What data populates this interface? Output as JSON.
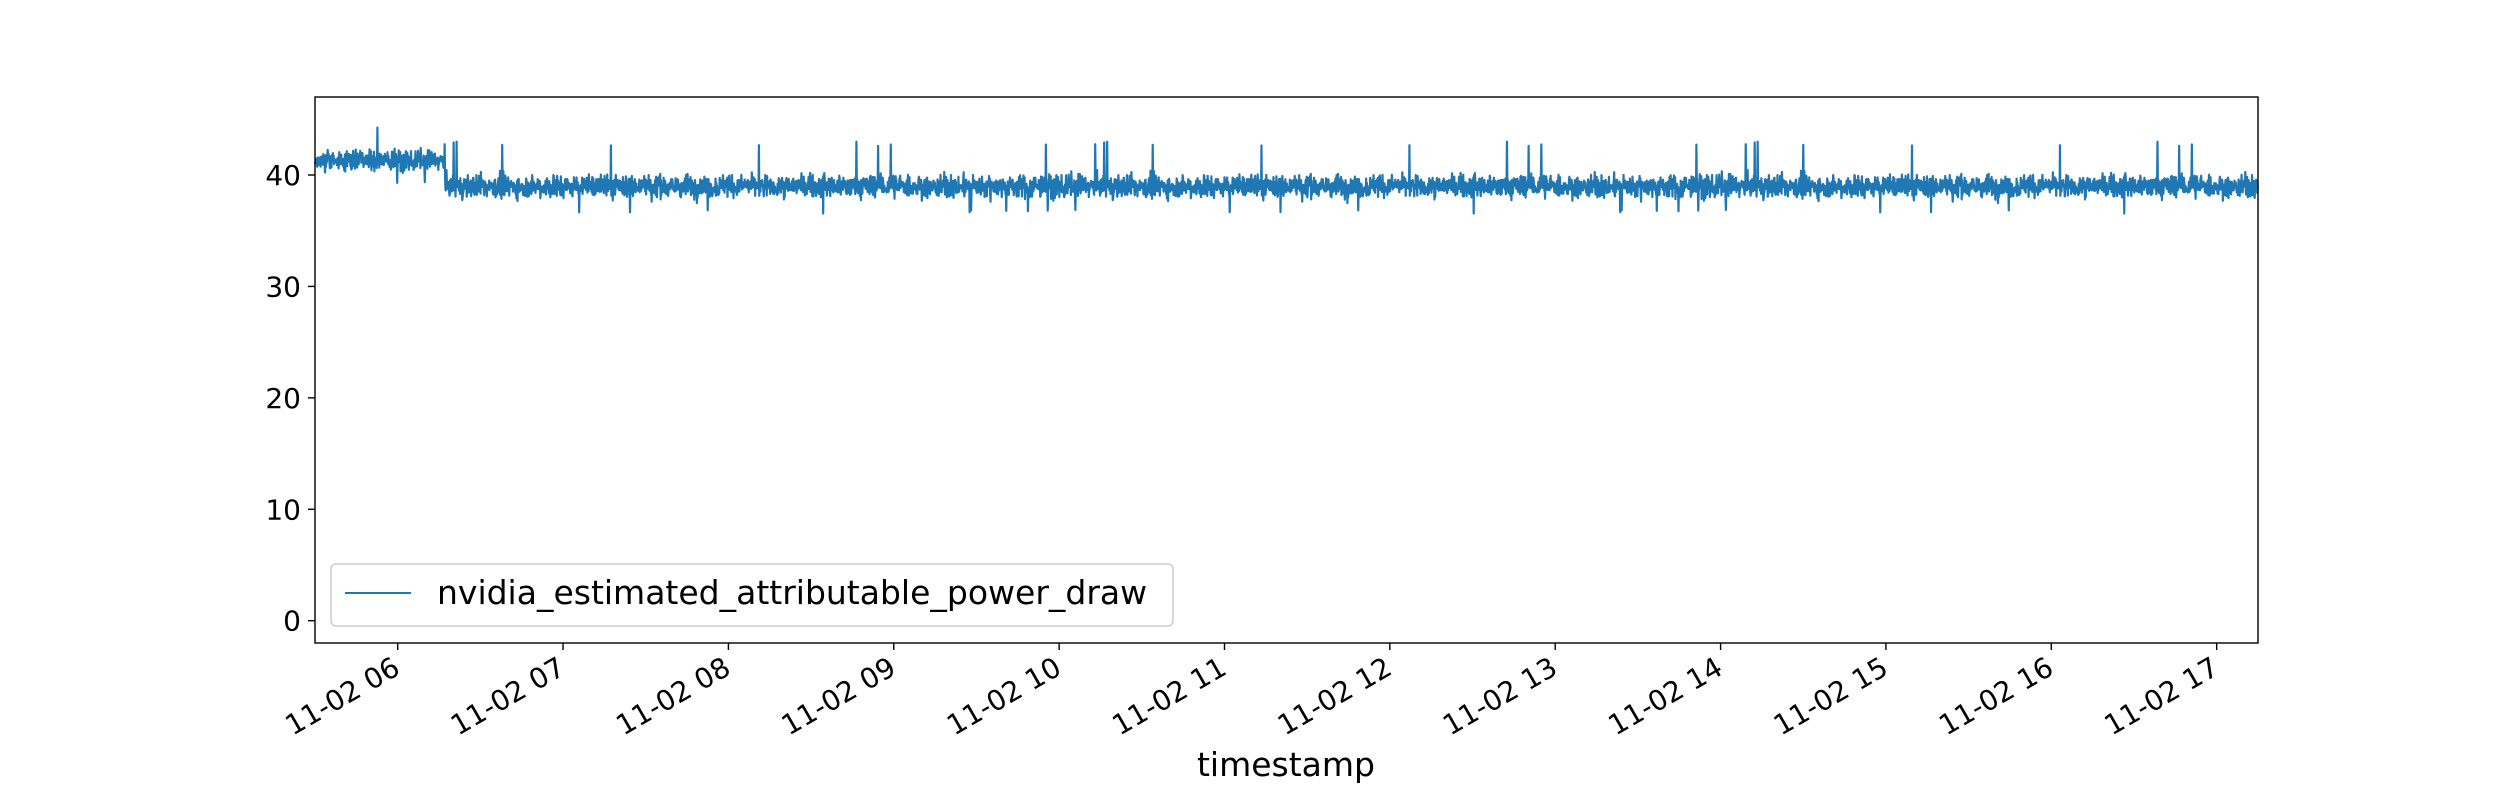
{
  "chart_data": {
    "type": "line",
    "xlabel": "timestamp",
    "ylabel": "",
    "x_tick_labels": [
      "11-02 06",
      "11-02 07",
      "11-02 08",
      "11-02 09",
      "11-02 10",
      "11-02 11",
      "11-02 12",
      "11-02 13",
      "11-02 14",
      "11-02 15",
      "11-02 16",
      "11-02 17"
    ],
    "y_ticks": [
      0,
      10,
      20,
      30,
      40
    ],
    "xlim": [
      "11-02 05:30",
      "11-02 17:15"
    ],
    "ylim": [
      -2,
      47
    ],
    "grid": false,
    "legend_position": "lower-left",
    "series": [
      {
        "name": "nvidia_estimated_attributable_power_draw",
        "color": "#1f77b4",
        "summary": {
          "segments": [
            {
              "start": "11-02 05:30",
              "end": "11-02 06:17",
              "mean": 41.3,
              "range": [
                39.0,
                44.5
              ]
            },
            {
              "start": "11-02 06:17",
              "end": "11-02 17:15",
              "mean": 39.0,
              "range": [
                36.5,
                43.0
              ]
            }
          ]
        },
        "points": [
          [
            "11-02 05:30",
            40.2
          ],
          [
            "11-02 05:33",
            44.0
          ],
          [
            "11-02 05:36",
            39.5
          ],
          [
            "11-02 05:40",
            43.2
          ],
          [
            "11-02 05:45",
            40.8
          ],
          [
            "11-02 05:50",
            43.8
          ],
          [
            "11-02 05:55",
            39.6
          ],
          [
            "11-02 06:00",
            42.9
          ],
          [
            "11-02 06:05",
            40.1
          ],
          [
            "11-02 06:08",
            44.5
          ],
          [
            "11-02 06:12",
            41.0
          ],
          [
            "11-02 06:15",
            42.5
          ],
          [
            "11-02 06:17",
            37.6
          ],
          [
            "11-02 06:30",
            39.2
          ],
          [
            "11-02 07:00",
            39.0
          ],
          [
            "11-02 07:30",
            39.1
          ],
          [
            "11-02 08:00",
            38.9
          ],
          [
            "11-02 08:30",
            39.0
          ],
          [
            "11-02 09:00",
            38.8
          ],
          [
            "11-02 09:30",
            39.0
          ],
          [
            "11-02 10:00",
            38.9
          ],
          [
            "11-02 10:30",
            39.1
          ],
          [
            "11-02 11:00",
            38.8
          ],
          [
            "11-02 11:30",
            39.0
          ],
          [
            "11-02 12:00",
            38.9
          ],
          [
            "11-02 12:30",
            39.0
          ],
          [
            "11-02 13:00",
            38.7
          ],
          [
            "11-02 13:30",
            39.0
          ],
          [
            "11-02 14:00",
            38.8
          ],
          [
            "11-02 14:30",
            39.0
          ],
          [
            "11-02 15:00",
            38.8
          ],
          [
            "11-02 15:30",
            39.0
          ],
          [
            "11-02 16:00",
            39.1
          ],
          [
            "11-02 16:30",
            39.3
          ],
          [
            "11-02 17:00",
            39.3
          ],
          [
            "11-02 17:15",
            39.0
          ]
        ]
      }
    ]
  }
}
